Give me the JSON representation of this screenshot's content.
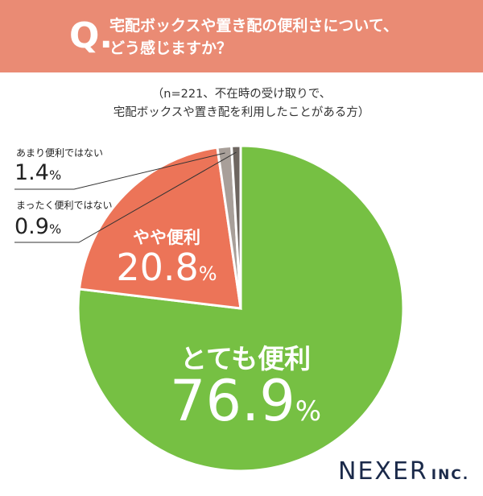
{
  "question": {
    "mark": "Q.",
    "line1": "宅配ボックスや置き配の便利さについて、",
    "line2": "どう感じますか？"
  },
  "note": {
    "line1": "（n=221、不在時の受け取りで、",
    "line2": "宅配ボックスや置き配を利用したことがある方）"
  },
  "logo": {
    "main": "NEXER",
    "suffix": "INC."
  },
  "chart_data": {
    "type": "pie",
    "title": "宅配ボックスや置き配の便利さについて、どう感じますか？",
    "n": 221,
    "slices": [
      {
        "label": "とても便利",
        "value": 76.9,
        "display": "76.9",
        "unit": "%",
        "color": "#76c043"
      },
      {
        "label": "やや便利",
        "value": 20.8,
        "display": "20.8",
        "unit": "%",
        "color": "#ec7458"
      },
      {
        "label": "あまり便利ではない",
        "value": 1.4,
        "display": "1.4",
        "unit": "%",
        "color": "#a89f99"
      },
      {
        "label": "まったく便利ではない",
        "value": 0.9,
        "display": "0.9",
        "unit": "%",
        "color": "#6e6660"
      }
    ]
  }
}
